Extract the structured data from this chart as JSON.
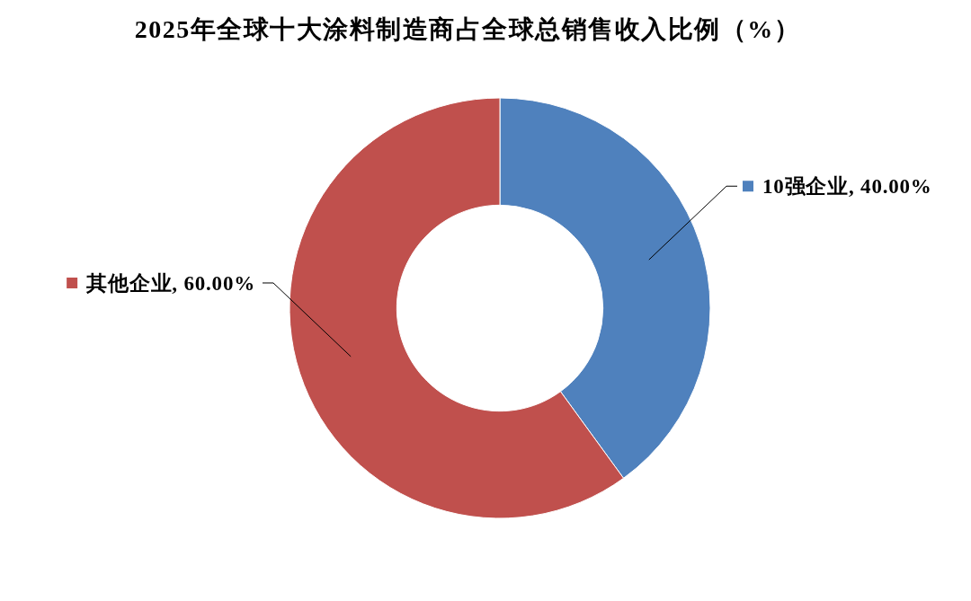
{
  "chart_data": {
    "type": "donut",
    "title": "2025年全球十大涂料制造商占全球总销售收入比例（%）",
    "categories": [
      "10强企业",
      "其他企业"
    ],
    "values": [
      40,
      60
    ],
    "colors": [
      "#4f81bd",
      "#c0504d"
    ],
    "value_labels": [
      "40.00%",
      "60.00%"
    ],
    "legend": "top"
  }
}
